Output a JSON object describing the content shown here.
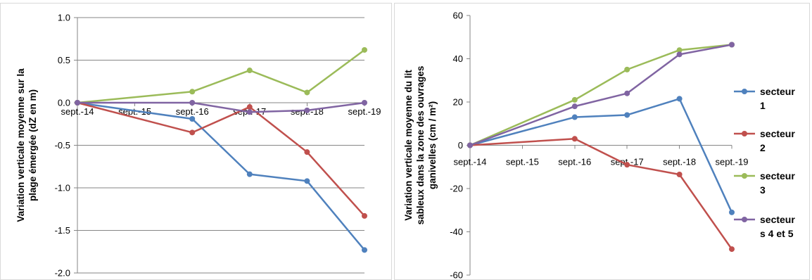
{
  "chart_data": [
    {
      "type": "line",
      "x": [
        "sept.-14",
        "sept.-15",
        "sept.-16",
        "sept.-17",
        "sept.-18",
        "sept.-19"
      ],
      "ylabel": [
        "Variation verticale moyenne sur la",
        "plage émergée (dZ en m)"
      ],
      "ylim": [
        -2.0,
        1.0
      ],
      "yticks": [
        "1.0",
        "0.5",
        "0.0",
        "-0.5",
        "-1.0",
        "-1.5",
        "-2.0"
      ],
      "ytick_values": [
        1.0,
        0.5,
        0.0,
        -0.5,
        -1.0,
        -1.5,
        -2.0
      ],
      "grid": true,
      "series": [
        {
          "id": "s1",
          "color": "#4f81bd",
          "values": [
            0,
            null,
            -0.19,
            -0.84,
            -0.92,
            -1.73
          ]
        },
        {
          "id": "s2",
          "color": "#c0504d",
          "values": [
            0,
            null,
            -0.35,
            -0.05,
            -0.58,
            -1.33
          ]
        },
        {
          "id": "s3",
          "color": "#9bbb59",
          "values": [
            0,
            null,
            0.13,
            0.38,
            0.12,
            0.62
          ]
        },
        {
          "id": "s45",
          "color": "#8064a2",
          "values": [
            0,
            null,
            0.0,
            -0.11,
            -0.09,
            0.0
          ]
        }
      ]
    },
    {
      "type": "line",
      "x": [
        "sept.-14",
        "sept.-15",
        "sept.-16",
        "sept.-17",
        "sept.-18",
        "sept.-19"
      ],
      "ylabel": [
        "Variation verticale moyenne du lit",
        "sableux dans la zone des ouvrages",
        "ganivelles  (cm / m²)"
      ],
      "ylim": [
        -60,
        60
      ],
      "yticks": [
        "60",
        "40",
        "20",
        "0",
        "-20",
        "-40",
        "-60"
      ],
      "ytick_values": [
        60,
        40,
        20,
        0,
        -20,
        -40,
        -60
      ],
      "grid": false,
      "legend_position": "right",
      "legend": [
        {
          "lines": [
            "secteur",
            "1"
          ],
          "color": "#4f81bd"
        },
        {
          "lines": [
            "secteur",
            "2"
          ],
          "color": "#c0504d"
        },
        {
          "lines": [
            "secteur",
            "3"
          ],
          "color": "#9bbb59"
        },
        {
          "lines": [
            "secteur",
            "s 4 et 5"
          ],
          "color": "#8064a2"
        }
      ],
      "series": [
        {
          "id": "s1",
          "color": "#4f81bd",
          "values": [
            0,
            null,
            13,
            14,
            21.5,
            -31
          ]
        },
        {
          "id": "s2",
          "color": "#c0504d",
          "values": [
            0,
            null,
            3,
            -9,
            -13.5,
            -48
          ]
        },
        {
          "id": "s3",
          "color": "#9bbb59",
          "values": [
            0,
            null,
            21,
            35,
            44,
            46.5
          ]
        },
        {
          "id": "s45",
          "color": "#8064a2",
          "values": [
            0,
            null,
            18,
            24,
            42,
            46.5
          ]
        }
      ]
    }
  ]
}
